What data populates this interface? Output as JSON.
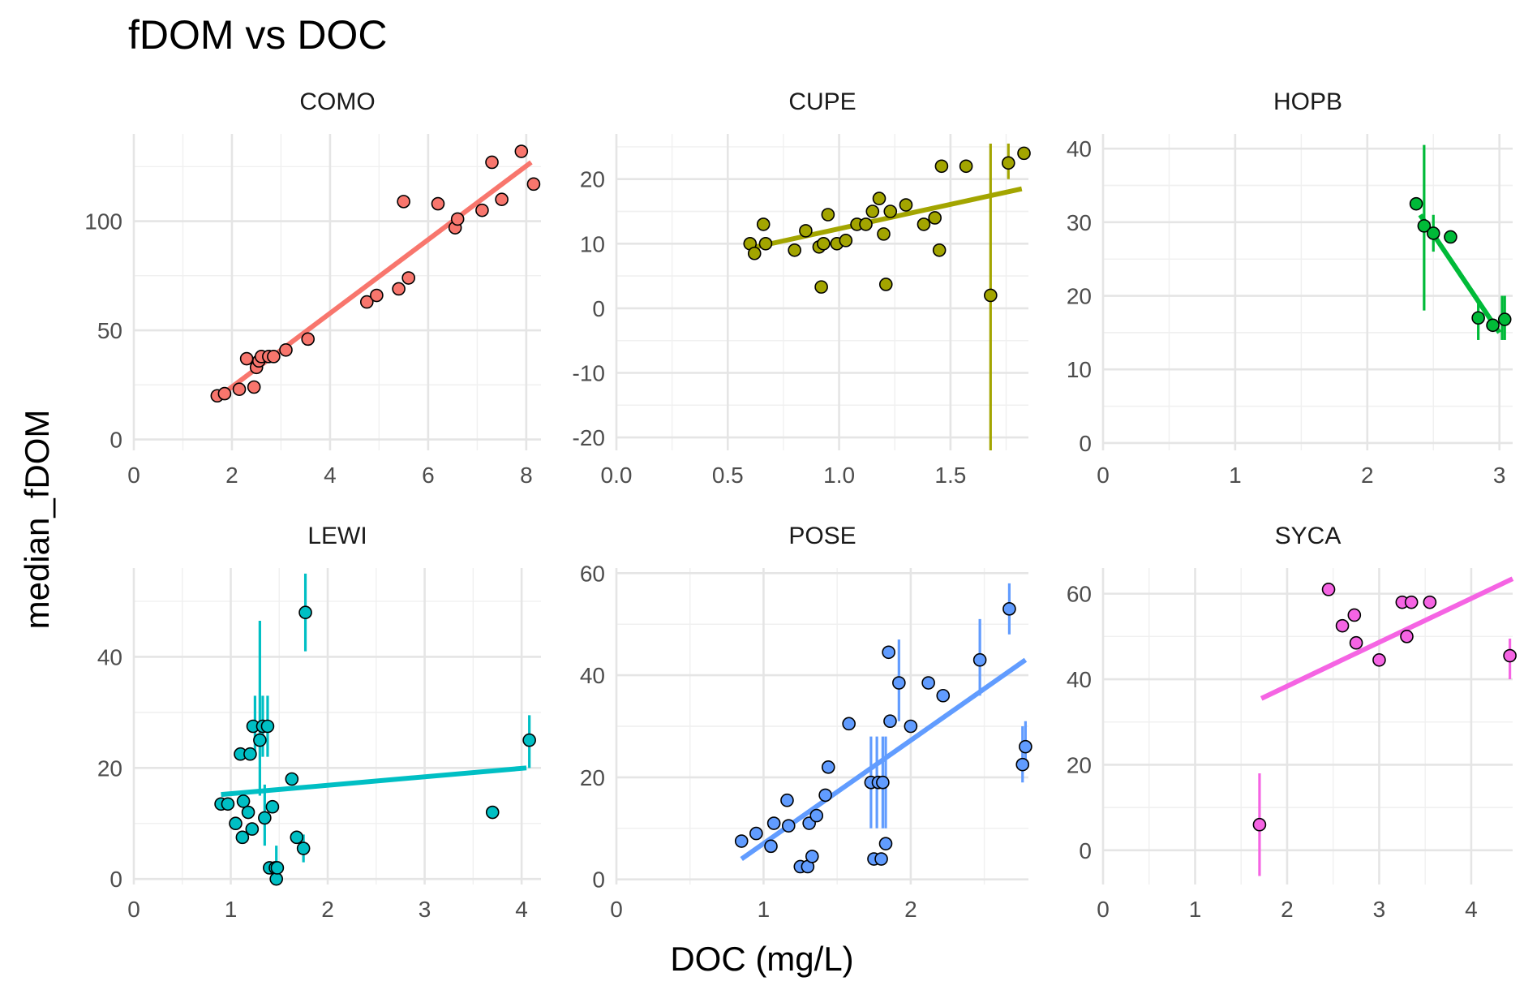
{
  "title": "fDOM vs DOC",
  "xlabel": "DOC (mg/L)",
  "ylabel": "median_fDOM",
  "chart_data": [
    {
      "type": "scatter",
      "facet": "COMO",
      "color": "#F8766D",
      "xlim": [
        0,
        8.3
      ],
      "ylim": [
        -5,
        140
      ],
      "xticks": [
        0,
        2,
        4,
        6,
        8
      ],
      "xtick_labels": [
        "0",
        "2",
        "4",
        "6",
        "8"
      ],
      "yticks": [
        0,
        50,
        100
      ],
      "ytick_labels": [
        "0",
        "50",
        "100"
      ],
      "fit": [
        [
          1.7,
          19
        ],
        [
          8.1,
          127
        ]
      ],
      "points": [
        [
          1.7,
          20
        ],
        [
          1.85,
          21
        ],
        [
          2.15,
          23
        ],
        [
          2.3,
          37
        ],
        [
          2.45,
          24
        ],
        [
          2.5,
          33
        ],
        [
          2.55,
          36
        ],
        [
          2.6,
          38
        ],
        [
          2.75,
          38
        ],
        [
          2.85,
          38
        ],
        [
          3.1,
          41
        ],
        [
          3.55,
          46
        ],
        [
          4.75,
          63
        ],
        [
          4.95,
          66
        ],
        [
          5.4,
          69
        ],
        [
          5.5,
          109
        ],
        [
          5.6,
          74
        ],
        [
          6.2,
          108
        ],
        [
          6.55,
          97
        ],
        [
          6.6,
          101
        ],
        [
          7.1,
          105
        ],
        [
          7.3,
          127
        ],
        [
          7.5,
          110
        ],
        [
          7.9,
          132
        ],
        [
          8.15,
          117
        ]
      ],
      "errorbars": [
        [
          2.5,
          31,
          36
        ],
        [
          2.6,
          35,
          41
        ],
        [
          2.75,
          35,
          41
        ]
      ]
    },
    {
      "type": "scatter",
      "facet": "CUPE",
      "color": "#A3A500",
      "xlim": [
        0,
        1.85
      ],
      "ylim": [
        -22,
        27
      ],
      "xticks": [
        0,
        0.5,
        1,
        1.5
      ],
      "xtick_labels": [
        "0.0",
        "0.5",
        "1.0",
        "1.5"
      ],
      "yticks": [
        -20,
        -10,
        0,
        10,
        20
      ],
      "ytick_labels": [
        "-20",
        "-10",
        "0",
        "10",
        "20"
      ],
      "fit": [
        [
          0.6,
          9.3
        ],
        [
          1.82,
          18.5
        ]
      ],
      "points": [
        [
          0.6,
          10
        ],
        [
          0.62,
          8.5
        ],
        [
          0.66,
          13
        ],
        [
          0.67,
          10
        ],
        [
          0.8,
          9
        ],
        [
          0.85,
          12
        ],
        [
          0.91,
          9.5
        ],
        [
          0.92,
          3.3
        ],
        [
          0.93,
          10
        ],
        [
          0.95,
          14.5
        ],
        [
          0.99,
          10
        ],
        [
          1.03,
          10.5
        ],
        [
          1.08,
          13
        ],
        [
          1.12,
          13
        ],
        [
          1.15,
          15
        ],
        [
          1.18,
          17
        ],
        [
          1.2,
          11.5
        ],
        [
          1.21,
          3.7
        ],
        [
          1.23,
          15
        ],
        [
          1.3,
          16
        ],
        [
          1.38,
          13
        ],
        [
          1.43,
          14
        ],
        [
          1.45,
          9
        ],
        [
          1.46,
          22
        ],
        [
          1.57,
          22
        ],
        [
          1.68,
          2
        ],
        [
          1.76,
          22.5
        ],
        [
          1.83,
          24
        ]
      ],
      "errorbars": [
        [
          1.68,
          -22,
          25.5
        ],
        [
          1.76,
          20,
          25.5
        ]
      ]
    },
    {
      "type": "scatter",
      "facet": "HOPB",
      "color": "#00BA38",
      "xlim": [
        0,
        3.1
      ],
      "ylim": [
        -1,
        42
      ],
      "xticks": [
        0,
        1,
        2,
        3
      ],
      "xtick_labels": [
        "0",
        "1",
        "2",
        "3"
      ],
      "yticks": [
        0,
        10,
        20,
        30,
        40
      ],
      "ytick_labels": [
        "0",
        "10",
        "20",
        "30",
        "40"
      ],
      "fit": [
        [
          2.4,
          31
        ],
        [
          3.0,
          15
        ]
      ],
      "points": [
        [
          2.37,
          32.5
        ],
        [
          2.43,
          29.5
        ],
        [
          2.5,
          28.5
        ],
        [
          2.63,
          28
        ],
        [
          2.84,
          17
        ],
        [
          2.95,
          16
        ],
        [
          3.04,
          16.8
        ]
      ],
      "errorbars": [
        [
          2.43,
          18,
          40.5
        ],
        [
          2.5,
          26,
          31
        ],
        [
          2.84,
          14,
          19
        ],
        [
          3.02,
          14,
          20
        ],
        [
          3.04,
          14,
          20
        ]
      ]
    },
    {
      "type": "scatter",
      "facet": "LEWI",
      "color": "#00BFC4",
      "xlim": [
        0,
        4.2
      ],
      "ylim": [
        -1,
        56
      ],
      "xticks": [
        0,
        1,
        2,
        3,
        4
      ],
      "xtick_labels": [
        "0",
        "1",
        "2",
        "3",
        "4"
      ],
      "yticks": [
        0,
        20,
        40
      ],
      "ytick_labels": [
        "0",
        "20",
        "40"
      ],
      "fit": [
        [
          0.9,
          15.2
        ],
        [
          4.05,
          20
        ]
      ],
      "points": [
        [
          0.9,
          13.5
        ],
        [
          0.97,
          13.5
        ],
        [
          1.05,
          10
        ],
        [
          1.1,
          22.5
        ],
        [
          1.12,
          7.5
        ],
        [
          1.13,
          14
        ],
        [
          1.18,
          12
        ],
        [
          1.22,
          9
        ],
        [
          1.2,
          22.5
        ],
        [
          1.23,
          27.5
        ],
        [
          1.3,
          25
        ],
        [
          1.33,
          27.5
        ],
        [
          1.35,
          11
        ],
        [
          1.38,
          27.5
        ],
        [
          1.4,
          2
        ],
        [
          1.43,
          13
        ],
        [
          1.46,
          2
        ],
        [
          1.47,
          0
        ],
        [
          1.48,
          2
        ],
        [
          1.63,
          18
        ],
        [
          1.68,
          7.5
        ],
        [
          1.75,
          5.5
        ],
        [
          1.77,
          48
        ],
        [
          3.7,
          12
        ],
        [
          4.08,
          25
        ]
      ],
      "errorbars": [
        [
          1.3,
          15,
          46.5
        ],
        [
          1.25,
          22,
          33
        ],
        [
          1.33,
          22,
          33
        ],
        [
          1.38,
          22,
          33
        ],
        [
          1.35,
          6,
          17
        ],
        [
          1.47,
          0,
          6
        ],
        [
          1.77,
          41,
          55
        ],
        [
          1.75,
          3,
          8
        ],
        [
          4.08,
          20,
          29.5
        ]
      ]
    },
    {
      "type": "scatter",
      "facet": "POSE",
      "color": "#619CFF",
      "xlim": [
        0,
        2.8
      ],
      "ylim": [
        -1,
        61
      ],
      "xticks": [
        0,
        1,
        2
      ],
      "xtick_labels": [
        "0",
        "1",
        "2"
      ],
      "yticks": [
        0,
        20,
        40,
        60
      ],
      "ytick_labels": [
        "0",
        "20",
        "40",
        "60"
      ],
      "fit": [
        [
          0.85,
          4
        ],
        [
          2.78,
          43
        ]
      ],
      "points": [
        [
          0.85,
          7.5
        ],
        [
          0.95,
          9
        ],
        [
          1.05,
          6.5
        ],
        [
          1.07,
          11
        ],
        [
          1.16,
          15.5
        ],
        [
          1.17,
          10.5
        ],
        [
          1.25,
          2.5
        ],
        [
          1.3,
          2.5
        ],
        [
          1.31,
          11
        ],
        [
          1.33,
          4.5
        ],
        [
          1.36,
          12.5
        ],
        [
          1.42,
          16.5
        ],
        [
          1.44,
          22
        ],
        [
          1.58,
          30.5
        ],
        [
          1.73,
          19
        ],
        [
          1.75,
          4
        ],
        [
          1.78,
          19
        ],
        [
          1.8,
          4
        ],
        [
          1.81,
          19
        ],
        [
          1.83,
          7
        ],
        [
          1.85,
          44.5
        ],
        [
          1.86,
          31
        ],
        [
          1.92,
          38.5
        ],
        [
          2.0,
          30
        ],
        [
          2.12,
          38.5
        ],
        [
          2.22,
          36
        ],
        [
          2.47,
          43
        ],
        [
          2.67,
          53
        ],
        [
          2.76,
          22.5
        ],
        [
          2.78,
          26
        ]
      ],
      "errorbars": [
        [
          1.73,
          10,
          28
        ],
        [
          1.77,
          10,
          28
        ],
        [
          1.81,
          10,
          28
        ],
        [
          1.83,
          10,
          28
        ],
        [
          1.92,
          31,
          47
        ],
        [
          2.47,
          36,
          51
        ],
        [
          2.67,
          48,
          58
        ],
        [
          2.76,
          19,
          30
        ],
        [
          2.78,
          23,
          31
        ]
      ]
    },
    {
      "type": "scatter",
      "facet": "SYCA",
      "color": "#F564E3",
      "xlim": [
        0,
        4.45
      ],
      "ylim": [
        -8,
        66
      ],
      "xticks": [
        0,
        1,
        2,
        3,
        4
      ],
      "xtick_labels": [
        "0",
        "1",
        "2",
        "3",
        "4"
      ],
      "yticks": [
        0,
        20,
        40,
        60
      ],
      "ytick_labels": [
        "0",
        "20",
        "40",
        "60"
      ],
      "fit": [
        [
          1.72,
          35.5
        ],
        [
          4.45,
          63.5
        ]
      ],
      "points": [
        [
          1.7,
          6
        ],
        [
          2.45,
          61
        ],
        [
          2.6,
          52.5
        ],
        [
          2.73,
          55
        ],
        [
          2.75,
          48.5
        ],
        [
          3.0,
          44.5
        ],
        [
          3.25,
          58
        ],
        [
          3.3,
          50
        ],
        [
          3.35,
          58
        ],
        [
          3.55,
          58
        ],
        [
          4.42,
          45.5
        ]
      ],
      "errorbars": [
        [
          1.7,
          -6,
          18
        ],
        [
          4.42,
          40,
          49.5
        ]
      ]
    }
  ]
}
